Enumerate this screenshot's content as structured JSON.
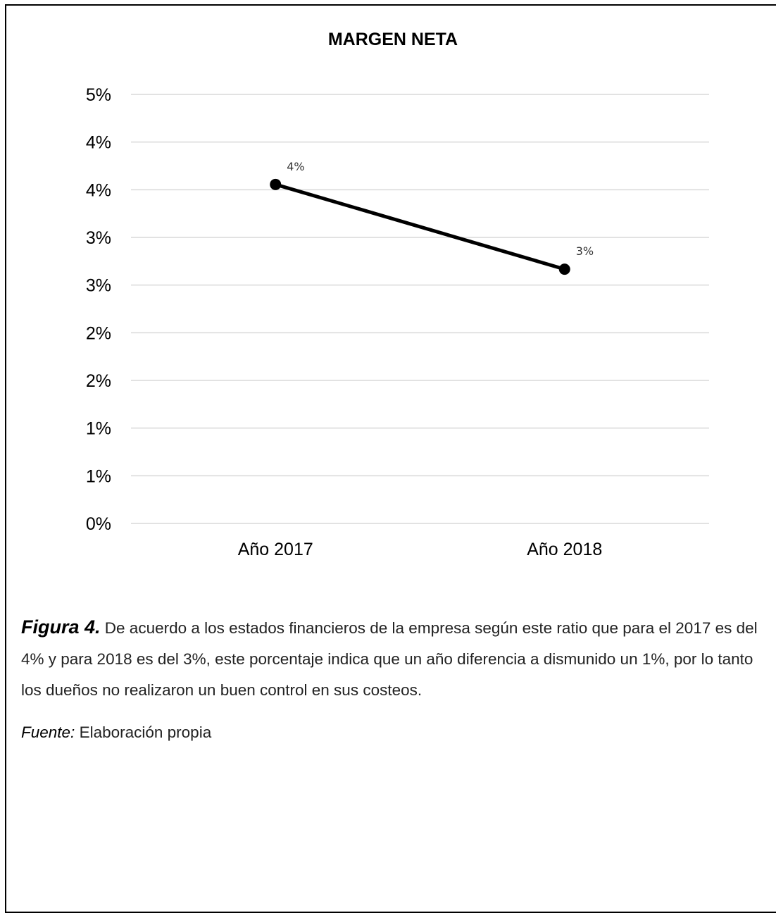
{
  "chart_data": {
    "type": "line",
    "title": "MARGEN NETA",
    "categories": [
      "Año 2017",
      "Año 2018"
    ],
    "series": [
      {
        "values": [
          4,
          3
        ],
        "data_labels": [
          "4%",
          "3%"
        ],
        "color": "#000000"
      }
    ],
    "y_tick_labels": [
      "0%",
      "1%",
      "1%",
      "2%",
      "2%",
      "3%",
      "3%",
      "4%",
      "4%",
      "5%"
    ],
    "ylim": [
      0,
      4.5
    ],
    "grid": true,
    "legend": "none"
  },
  "caption": {
    "label": "Figura 4.",
    "text": "De acuerdo a los estados financieros de la empresa según este ratio que para el 2017 es del 4% y para 2018 es del 3%, este porcentaje indica que un año diferencia a dismunido un 1%, por lo tanto los dueños  no realizaron un buen control en sus costeos."
  },
  "source": {
    "label": "Fuente:",
    "text": "Elaboración propia"
  }
}
